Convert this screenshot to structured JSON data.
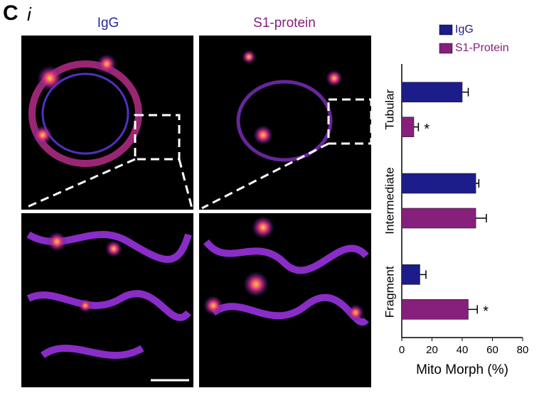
{
  "panel_label": "C",
  "sub_label": "i",
  "column_titles": [
    "IgG",
    "S1-protein"
  ],
  "chart_data": {
    "type": "hbar",
    "categories": [
      "Tubular",
      "Intermediate",
      "Fragment"
    ],
    "series": [
      {
        "name": "IgG",
        "color": "#1c1c8a",
        "values": [
          40,
          49,
          12
        ],
        "errors": [
          4,
          2,
          4
        ]
      },
      {
        "name": "S1-Protein",
        "color": "#86207c",
        "values": [
          8,
          49,
          44
        ],
        "errors": [
          3,
          7,
          6
        ],
        "annotations": [
          "*",
          null,
          "*"
        ]
      }
    ],
    "xlabel": "Mito Morph (%)",
    "xlim": [
      0,
      80
    ],
    "xticks": [
      0,
      20,
      40,
      60,
      80
    ]
  }
}
